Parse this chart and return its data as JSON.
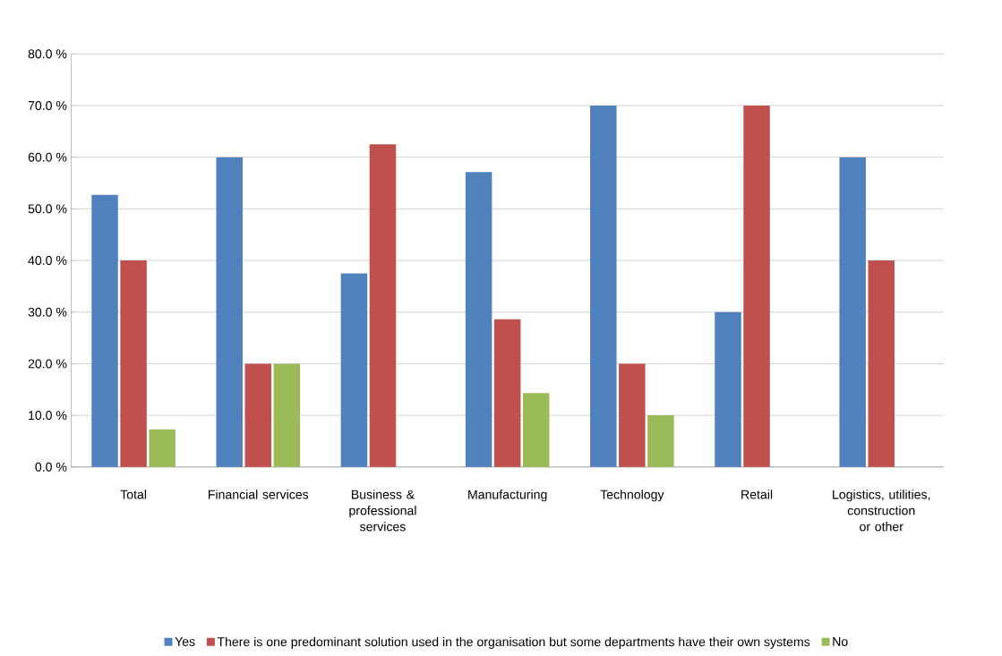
{
  "chart_data": {
    "type": "bar",
    "categories": [
      "Total",
      "Financial services",
      "Business & professional services",
      "Manufacturing",
      "Technology",
      "Retail",
      "Logistics, utilities, construction or other"
    ],
    "series": [
      {
        "name": "Yes",
        "color": "#4f81bd",
        "values": [
          52.7,
          60,
          37.5,
          57.1,
          70,
          30,
          60
        ]
      },
      {
        "name": "There is one predominant solution used in the organisation but some departments have their own systems",
        "color": "#c0504d",
        "values": [
          40,
          20,
          62.5,
          28.6,
          20,
          70,
          40
        ]
      },
      {
        "name": "No",
        "color": "#9bbb59",
        "values": [
          7.3,
          20,
          null,
          14.3,
          10,
          null,
          null
        ]
      }
    ],
    "ylim": [
      0,
      80
    ],
    "yticks": [
      {
        "value": 0,
        "label": "0.0 %"
      },
      {
        "value": 10,
        "label": "10.0 %"
      },
      {
        "value": 20,
        "label": "20.0 %"
      },
      {
        "value": 30,
        "label": "30.0 %"
      },
      {
        "value": 40,
        "label": "40.0 %"
      },
      {
        "value": 50,
        "label": "50.0 %"
      },
      {
        "value": 60,
        "label": "60.0 %"
      },
      {
        "value": 70,
        "label": "70.0 %"
      },
      {
        "value": 80,
        "label": "80.0 %"
      }
    ],
    "grid": "y",
    "legend": "bottom"
  }
}
